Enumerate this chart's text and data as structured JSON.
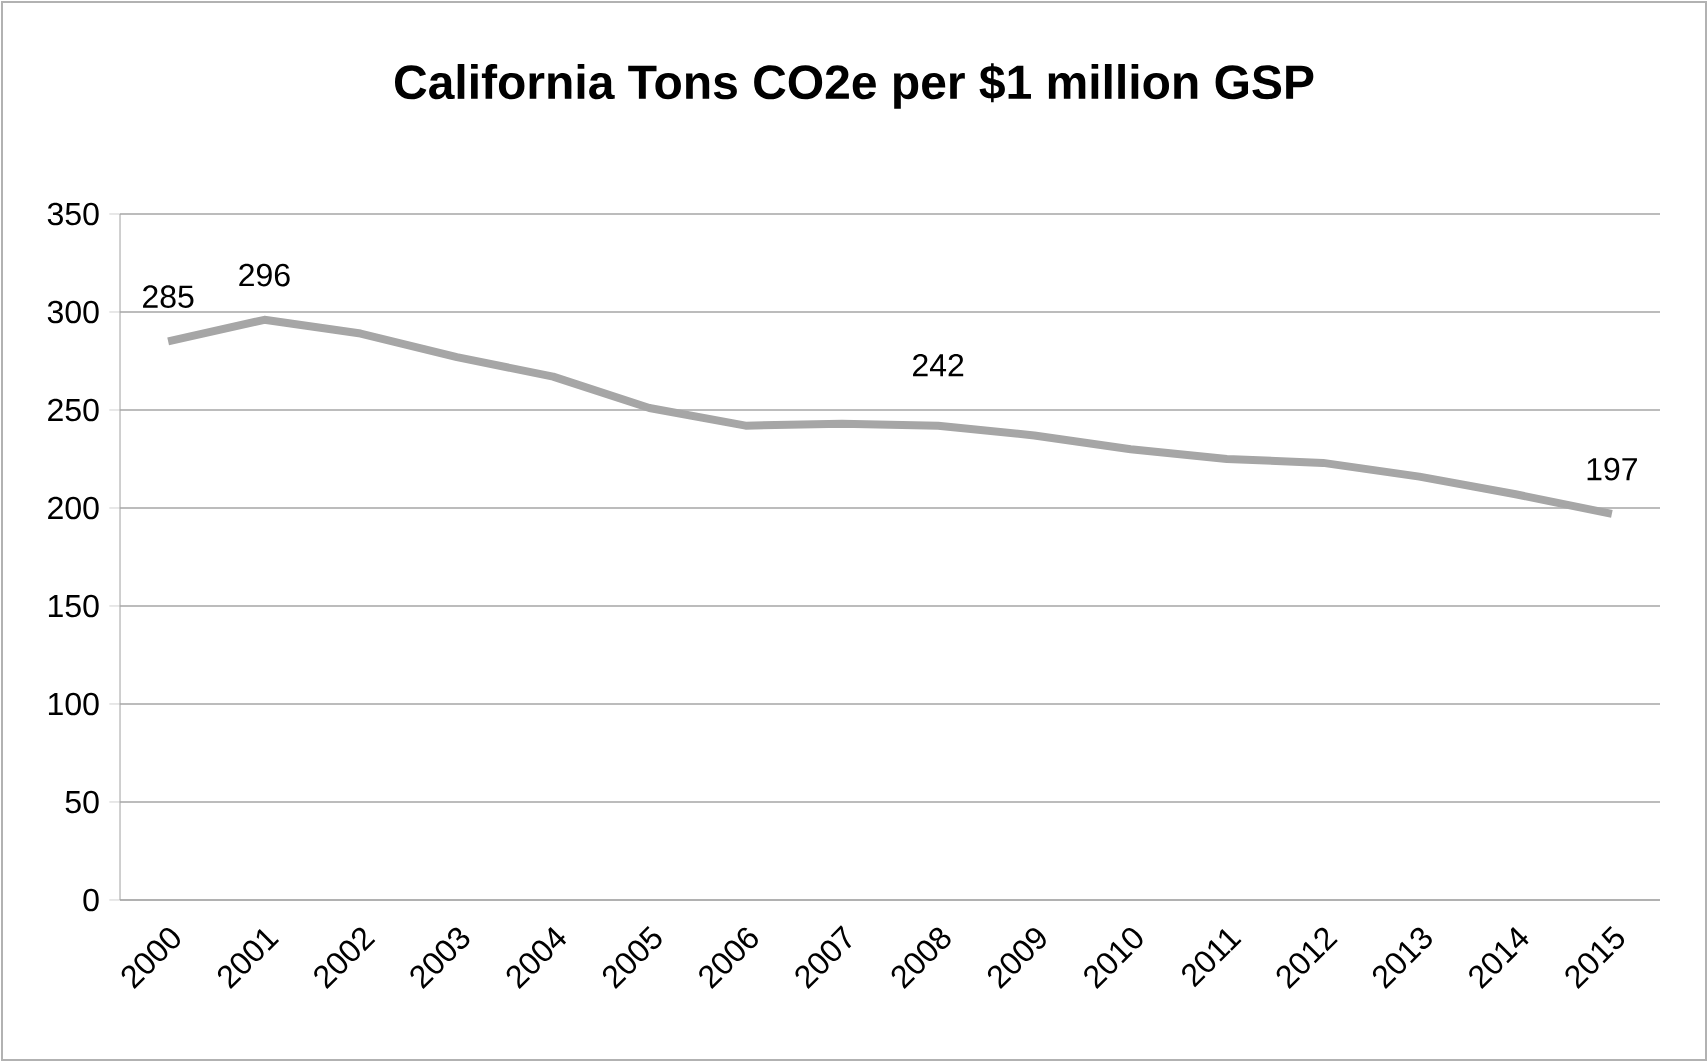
{
  "chart_data": {
    "type": "line",
    "title": "California Tons CO2e per $1 million GSP",
    "categories": [
      "2000",
      "2001",
      "2002",
      "2003",
      "2004",
      "2005",
      "2006",
      "2007",
      "2008",
      "2009",
      "2010",
      "2011",
      "2012",
      "2013",
      "2014",
      "2015"
    ],
    "values": [
      285,
      296,
      289,
      277,
      267,
      251,
      242,
      243,
      242,
      237,
      230,
      225,
      223,
      216,
      207,
      197
    ],
    "value_labels": [
      "285",
      "296",
      null,
      null,
      null,
      null,
      null,
      null,
      "242",
      null,
      null,
      null,
      null,
      null,
      null,
      "197"
    ],
    "color": "#a6a6a6",
    "ylim": [
      0,
      350
    ],
    "yticks": [
      0,
      50,
      100,
      150,
      200,
      250,
      300,
      350
    ],
    "grid": "y",
    "legend": false,
    "marker": "none",
    "line_style": "solid"
  }
}
